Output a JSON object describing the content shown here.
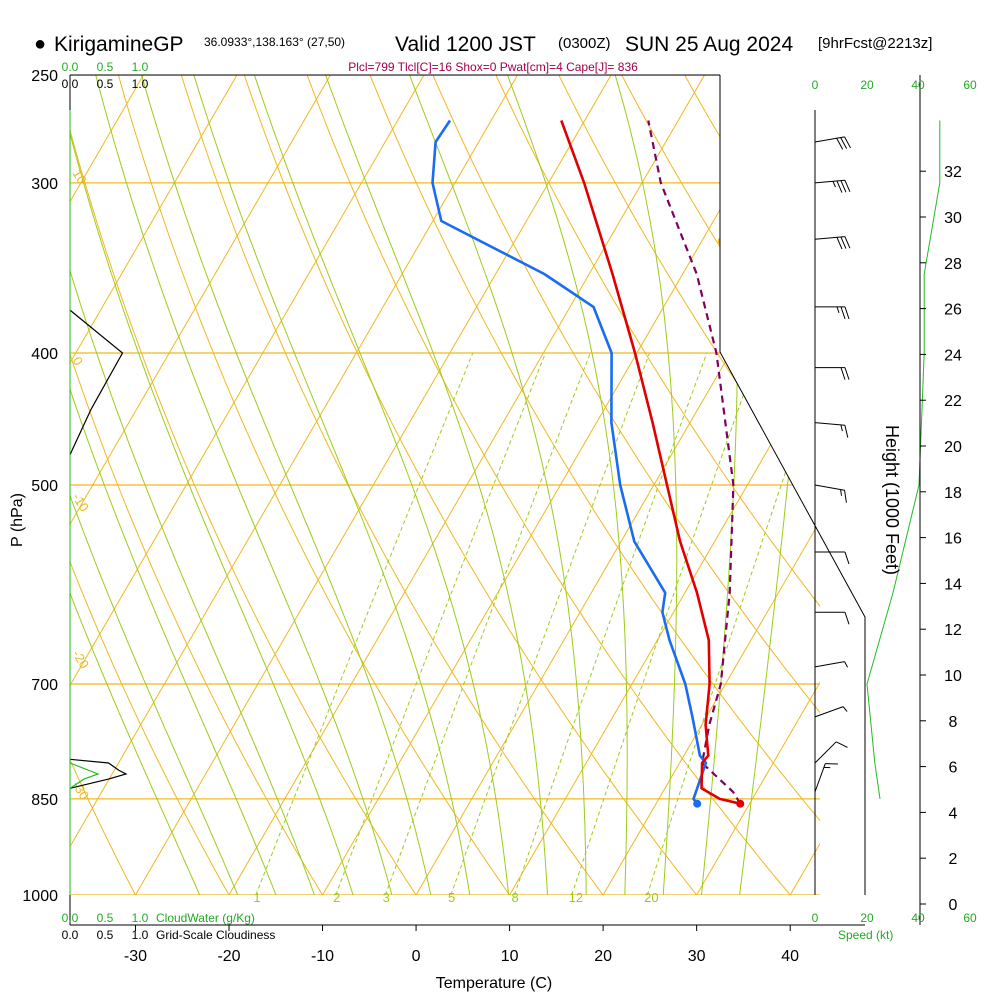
{
  "header": {
    "bullet": "●",
    "station": "KirigamineGP",
    "coords": "36.0933°,138.163° (27,50)",
    "valid_main": "Valid 1200 JST",
    "valid_utc": "(0300Z)",
    "valid_date": "SUN 25 Aug 2024",
    "forecast": "[9hrFcst@2213z]"
  },
  "chart_data": {
    "type": "skew-t",
    "indices": "Plcl=799 Tlcl[C]=16 Shox=0 Pwat[cm]=4 Cape[J]= 836",
    "xlabel": "Temperature (C)",
    "ylabel": "P (hPa)",
    "y2label": "Height (1000 Feet)",
    "x_ticks": [
      -30,
      -20,
      -10,
      0,
      10,
      20,
      30,
      40
    ],
    "pressure_ticks": [
      250,
      300,
      400,
      500,
      700,
      850,
      1000
    ],
    "height_ticks": [
      0,
      2,
      4,
      6,
      8,
      10,
      12,
      14,
      16,
      18,
      20,
      22,
      24,
      26,
      28,
      30,
      32
    ],
    "temp_bottom_range": [
      -37,
      48
    ],
    "pressure_range": [
      250,
      1000
    ],
    "skew_slope": 0.58,
    "isotherm_labels": [
      "10",
      "0",
      "-10",
      "-20",
      "-30"
    ],
    "isotherm_labels_right": [
      "0",
      "10",
      "20",
      "30"
    ],
    "mixing_ratio_labels": [
      "1",
      "2",
      "3",
      "5",
      "8",
      "12",
      "20"
    ],
    "series": [
      {
        "name": "temperature",
        "color": "#e00000",
        "points": [
          [
            857,
            29
          ],
          [
            850,
            26.5
          ],
          [
            835,
            23.9
          ],
          [
            800,
            22.4
          ],
          [
            790,
            22.6
          ],
          [
            750,
            20.4
          ],
          [
            700,
            18.3
          ],
          [
            650,
            15.5
          ],
          [
            600,
            11.3
          ],
          [
            550,
            6.3
          ],
          [
            500,
            1.4
          ],
          [
            450,
            -4
          ],
          [
            400,
            -10.2
          ],
          [
            350,
            -17.5
          ],
          [
            300,
            -26.2
          ],
          [
            270,
            -32.5
          ]
        ]
      },
      {
        "name": "dewpoint",
        "color": "#1a6cf0",
        "points": [
          [
            857,
            24.4
          ],
          [
            850,
            23.7
          ],
          [
            800,
            22.8
          ],
          [
            790,
            21.7
          ],
          [
            740,
            18.5
          ],
          [
            700,
            15.7
          ],
          [
            650,
            11.3
          ],
          [
            620,
            8.8
          ],
          [
            600,
            7.9
          ],
          [
            550,
            1.4
          ],
          [
            500,
            -3.6
          ],
          [
            450,
            -8.4
          ],
          [
            400,
            -12.7
          ],
          [
            370,
            -17.5
          ],
          [
            350,
            -24.8
          ],
          [
            320,
            -39.1
          ],
          [
            300,
            -42.4
          ],
          [
            280,
            -44.6
          ],
          [
            270,
            -44.4
          ]
        ]
      },
      {
        "name": "parcel",
        "color": "#800060",
        "points": [
          [
            857,
            29
          ],
          [
            840,
            27.5
          ],
          [
            800,
            22.4
          ],
          [
            750,
            20.8
          ],
          [
            700,
            19.5
          ],
          [
            600,
            14.8
          ],
          [
            500,
            8.5
          ],
          [
            400,
            -1.5
          ],
          [
            350,
            -8.5
          ],
          [
            300,
            -18
          ],
          [
            270,
            -23.2
          ]
        ]
      }
    ],
    "cloud_water_axis": {
      "label": "CloudWater (g/Kg)",
      "ticks": [
        "0.0",
        "0.5",
        "1.0"
      ]
    },
    "cloudiness_axis": {
      "label": "Grid-Scale Cloudiness",
      "ticks": [
        "0.0",
        "0.5",
        "1.0"
      ]
    },
    "cloudiness_profile": [
      [
        372,
        0
      ],
      [
        400,
        0.75
      ],
      [
        440,
        0.3
      ],
      [
        475,
        0
      ]
    ],
    "cloudiness_profile_low": [
      [
        795,
        0
      ],
      [
        800,
        0.55
      ],
      [
        810,
        0.7
      ],
      [
        815,
        0.8
      ],
      [
        822,
        0.55
      ],
      [
        835,
        0
      ]
    ],
    "cloud_water_profile_low": [
      [
        800,
        0
      ],
      [
        815,
        0.4
      ],
      [
        822,
        0.2
      ],
      [
        835,
        0
      ]
    ],
    "speed_axis": {
      "label": "Speed (kt)",
      "ticks": [
        "0",
        "20",
        "40",
        "60"
      ]
    },
    "wind_speed_profile": [
      [
        850,
        25
      ],
      [
        800,
        23
      ],
      [
        700,
        20
      ],
      [
        600,
        30
      ],
      [
        500,
        40
      ],
      [
        400,
        42
      ],
      [
        350,
        42
      ],
      [
        300,
        48
      ],
      [
        270,
        48
      ]
    ],
    "wind_barbs": [
      {
        "p": 280,
        "speed": 30,
        "dir": 260
      },
      {
        "p": 300,
        "speed": 35,
        "dir": 265
      },
      {
        "p": 330,
        "speed": 30,
        "dir": 265
      },
      {
        "p": 370,
        "speed": 25,
        "dir": 270
      },
      {
        "p": 410,
        "speed": 20,
        "dir": 270
      },
      {
        "p": 450,
        "speed": 15,
        "dir": 275
      },
      {
        "p": 500,
        "speed": 15,
        "dir": 280
      },
      {
        "p": 560,
        "speed": 10,
        "dir": 270
      },
      {
        "p": 620,
        "speed": 10,
        "dir": 270
      },
      {
        "p": 680,
        "speed": 5,
        "dir": 260
      },
      {
        "p": 740,
        "speed": 5,
        "dir": 250
      },
      {
        "p": 800,
        "speed": 10,
        "dir": 225
      },
      {
        "p": 840,
        "speed": 15,
        "dir": 200
      }
    ]
  }
}
